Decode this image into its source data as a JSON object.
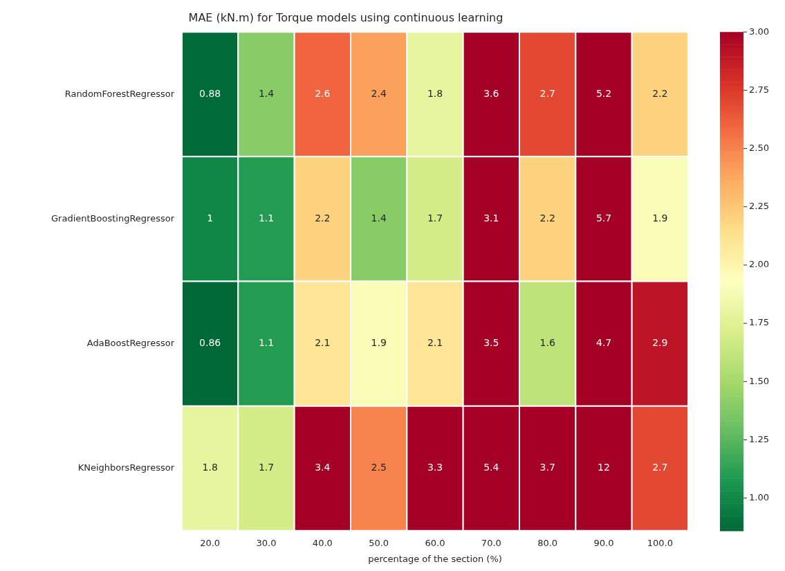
{
  "chart_data": {
    "type": "heatmap",
    "title": "MAE (kN.m) for Torque models using continuous learning",
    "xlabel": "percentage of the section (%)",
    "categories": [
      "20.0",
      "30.0",
      "40.0",
      "50.0",
      "60.0",
      "70.0",
      "80.0",
      "90.0",
      "100.0"
    ],
    "y_categories": [
      "RandomForestRegressor",
      "GradientBoostingRegressor",
      "AdaBoostRegressor",
      "KNeighborsRegressor"
    ],
    "cells": [
      [
        0.88,
        1.4,
        2.6,
        2.4,
        1.8,
        3.6,
        2.7,
        5.2,
        2.2
      ],
      [
        1,
        1.1,
        2.2,
        1.4,
        1.7,
        3.1,
        2.2,
        5.7,
        1.9
      ],
      [
        0.86,
        1.1,
        2.1,
        1.9,
        2.1,
        3.5,
        1.6,
        4.7,
        2.9
      ],
      [
        1.8,
        1.7,
        3.4,
        2.5,
        3.3,
        5.4,
        3.7,
        12,
        2.7
      ]
    ],
    "data_labels": true,
    "clim": [
      0.86,
      3.0
    ],
    "cticks": [
      {
        "value": 1,
        "label": "1.00"
      },
      {
        "value": 1.25,
        "label": "1.25"
      },
      {
        "value": 1.5,
        "label": "1.50"
      },
      {
        "value": 1.75,
        "label": "1.75"
      },
      {
        "value": 2,
        "label": "2.00"
      },
      {
        "value": 2.25,
        "label": "2.25"
      },
      {
        "value": 2.5,
        "label": "2.50"
      },
      {
        "value": 2.75,
        "label": "2.75"
      },
      {
        "value": 3,
        "label": "3.00"
      }
    ]
  }
}
